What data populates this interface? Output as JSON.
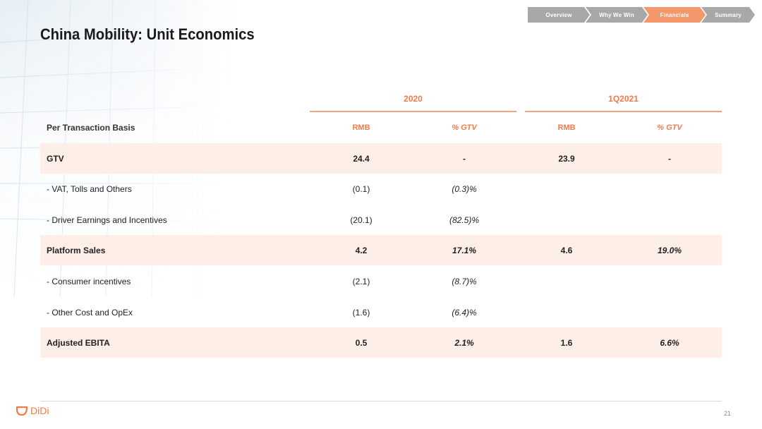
{
  "nav": {
    "items": [
      {
        "label": "Overview",
        "active": false
      },
      {
        "label": "Why We Win",
        "active": false
      },
      {
        "label": "Financials",
        "active": true
      },
      {
        "label": "Summary",
        "active": false
      }
    ]
  },
  "title": "China Mobility: Unit Economics",
  "table": {
    "periods": [
      "2020",
      "1Q2021"
    ],
    "header": {
      "label": "Per Transaction Basis",
      "cols": [
        "RMB",
        "% GTV",
        "RMB",
        "% GTV"
      ]
    },
    "rows": [
      {
        "label": "GTV",
        "c1": "24.4",
        "c2": "-",
        "c3": "23.9",
        "c4": "-"
      },
      {
        "label": "- VAT, Tolls and Others",
        "c1": "(0.1)",
        "c2": "(0.3)%",
        "c3": "",
        "c4": ""
      },
      {
        "label": "- Driver Earnings and Incentives",
        "c1": "(20.1)",
        "c2": "(82.5)%",
        "c3": "",
        "c4": ""
      },
      {
        "label": "Platform Sales",
        "c1": "4.2",
        "c2": "17.1%",
        "c3": "4.6",
        "c4": "19.0%"
      },
      {
        "label": "- Consumer incentives",
        "c1": "(2.1)",
        "c2": "(8.7)%",
        "c3": "",
        "c4": ""
      },
      {
        "label": "- Other Cost and OpEx",
        "c1": "(1.6)",
        "c2": "(6.4)%",
        "c3": "",
        "c4": ""
      },
      {
        "label": "Adjusted EBITA",
        "c1": "0.5",
        "c2": "2.1%",
        "c3": "1.6",
        "c4": "6.6%"
      }
    ]
  },
  "footer": {
    "logo_text": "DiDi",
    "page_number": "21"
  },
  "colors": {
    "accent": "#f07b4a",
    "highlight_row": "#fdeee7",
    "nav_inactive": "#a8a8a8",
    "nav_active": "#f4976c"
  }
}
